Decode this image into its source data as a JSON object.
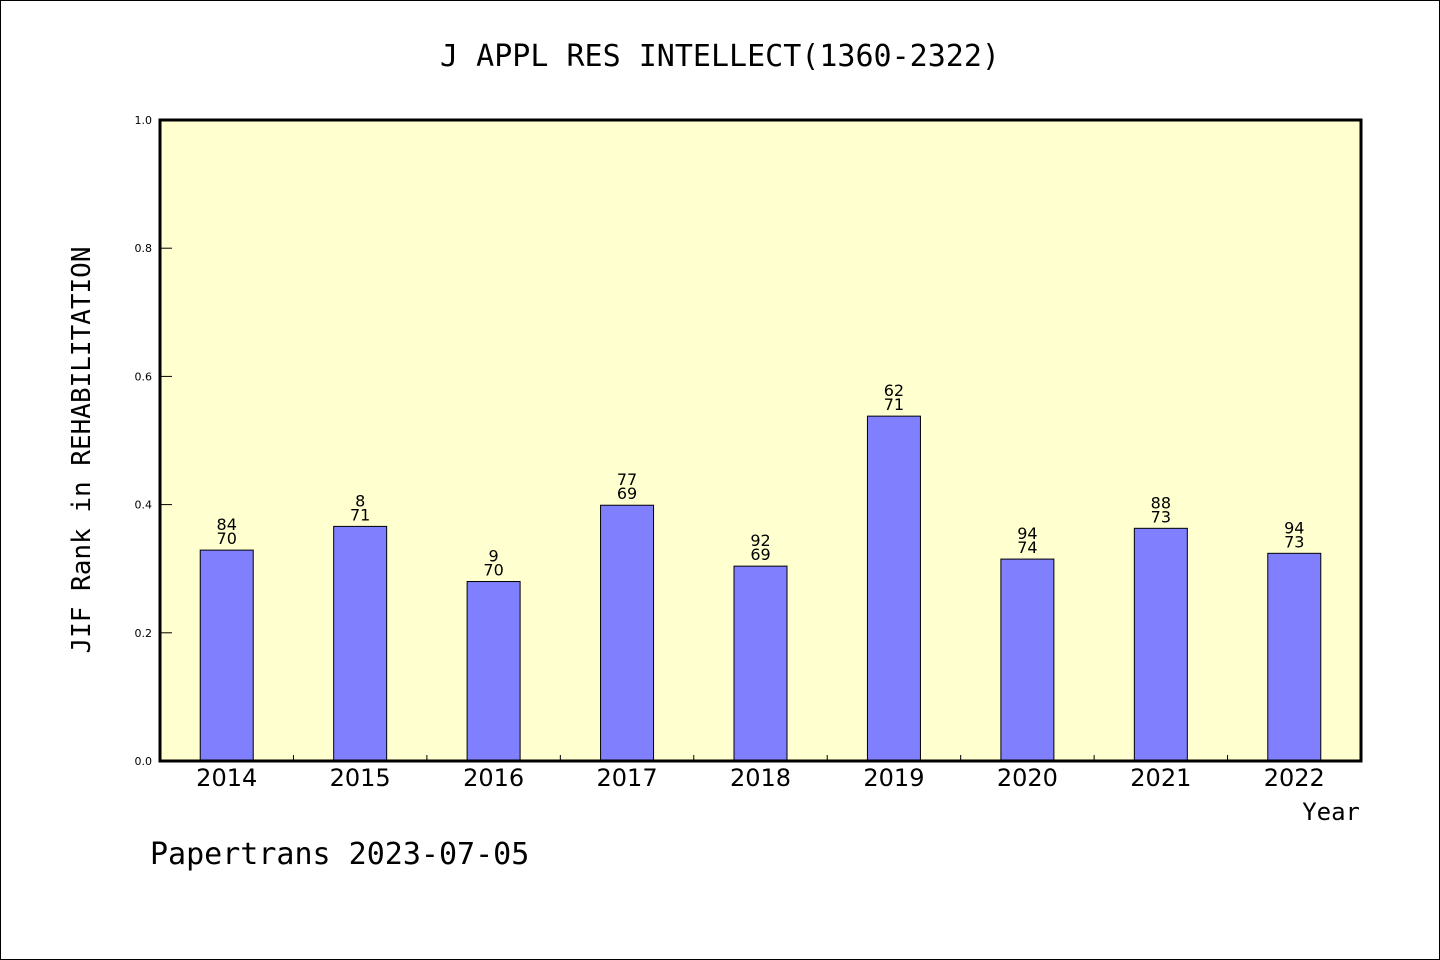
{
  "chart_data": {
    "type": "bar",
    "title": "J APPL RES INTELLECT(1360-2322)",
    "ylabel": "JIF Rank in REHABILITATION",
    "xlabel": "Year",
    "ylim": [
      0,
      1.0
    ],
    "yticks": [
      "0.0",
      "0.2",
      "0.4",
      "0.6",
      "0.8",
      "1.0"
    ],
    "grid": false,
    "bar_color": "#8080ff",
    "plot_bg": "#ffffd0",
    "categories": [
      "2014",
      "2015",
      "2016",
      "2017",
      "2018",
      "2019",
      "2020",
      "2021",
      "2022"
    ],
    "values": [
      0.329,
      0.366,
      0.28,
      0.399,
      0.304,
      0.538,
      0.315,
      0.363,
      0.324
    ],
    "labels": [
      [
        "84",
        "70"
      ],
      [
        "8",
        "71"
      ],
      [
        "9",
        "70"
      ],
      [
        "77",
        "69"
      ],
      [
        "92",
        "69"
      ],
      [
        "62",
        "71"
      ],
      [
        "94",
        "74"
      ],
      [
        "88",
        "73"
      ],
      [
        "94",
        "73"
      ]
    ]
  },
  "footer": {
    "credit": "Papertrans 2023-07-05"
  }
}
